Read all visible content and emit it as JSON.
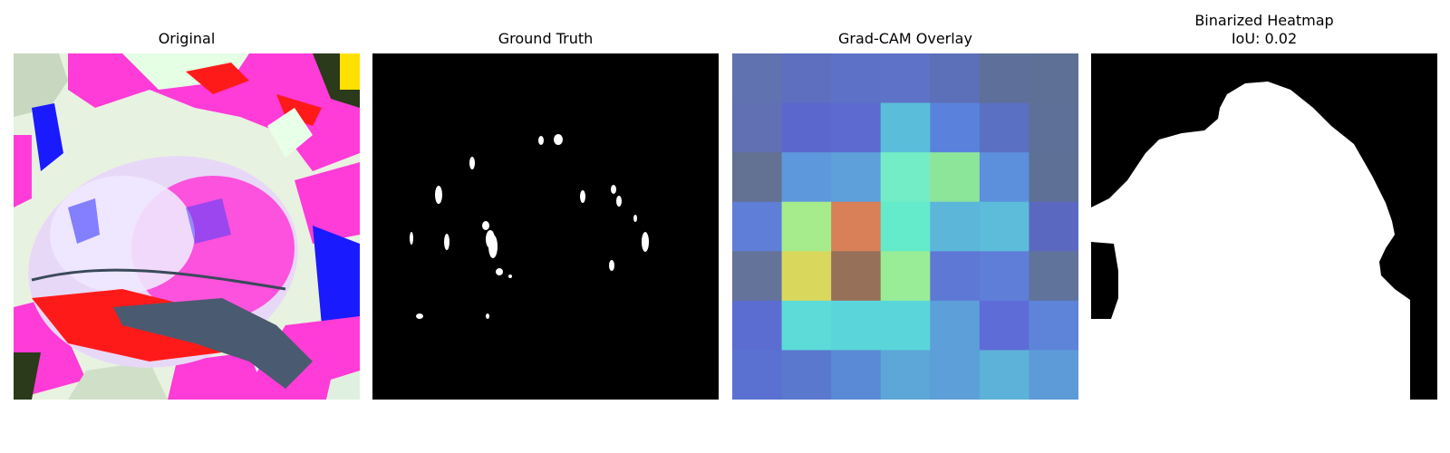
{
  "panels": [
    {
      "title": "Original"
    },
    {
      "title": "Ground Truth"
    },
    {
      "title": "Grad-CAM Overlay"
    },
    {
      "title": "Binarized Heatmap",
      "subtitle": "IoU: 0.02"
    }
  ],
  "gradcam_grid": [
    [
      "#6073b0",
      "#5e6fc0",
      "#5d72c6",
      "#5e72c8",
      "#5b70b8",
      "#5e709a",
      "#5f7096"
    ],
    [
      "#6070b2",
      "#5b67cc",
      "#5d6bd0",
      "#5abedb",
      "#5a82dc",
      "#5a70c2",
      "#5f7098"
    ],
    [
      "#637192",
      "#5e98dc",
      "#5ea0da",
      "#73edc5",
      "#8ce69a",
      "#5c8fdc",
      "#5f7096"
    ],
    [
      "#5e7ed8",
      "#a6eb8c",
      "#da8058",
      "#63ebcb",
      "#5cb6da",
      "#5cbcda",
      "#5a68c0"
    ],
    [
      "#63739a",
      "#d9d85c",
      "#97705a",
      "#98ed96",
      "#5e78d6",
      "#5e7ed8",
      "#60739a"
    ],
    [
      "#5b6dd0",
      "#5cdbd8",
      "#5ad6da",
      "#5ad6da",
      "#5d9fd9",
      "#5e6cd8",
      "#5d84d8"
    ],
    [
      "#5b71d2",
      "#5b78cf",
      "#5a8ad5",
      "#5da6d8",
      "#5d9fd8",
      "#5cb2d8",
      "#5d9bd8"
    ]
  ]
}
